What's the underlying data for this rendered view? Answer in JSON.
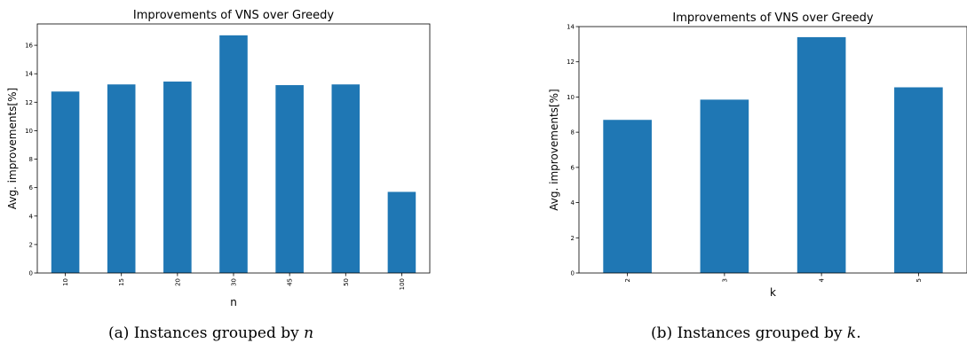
{
  "chart_data": [
    {
      "type": "bar",
      "title": "Improvements of VNS over Greedy",
      "xlabel": "n",
      "ylabel": "Avg. improvements[%]",
      "categories": [
        "10",
        "15",
        "20",
        "30",
        "45",
        "50",
        "100"
      ],
      "values": [
        12.75,
        13.25,
        13.45,
        16.7,
        13.2,
        13.25,
        5.7
      ],
      "ylim": [
        0,
        17.5
      ],
      "yticks": [
        0,
        2,
        4,
        6,
        8,
        10,
        12,
        14,
        16
      ],
      "color": "#1f77b4",
      "grid": false,
      "x_tick_rotation": "vertical"
    },
    {
      "type": "bar",
      "title": "Improvements of VNS over Greedy",
      "xlabel": "k",
      "ylabel": "Avg. improvements[%]",
      "categories": [
        "2",
        "3",
        "4",
        "5"
      ],
      "values": [
        8.7,
        9.85,
        13.4,
        10.55
      ],
      "ylim": [
        0,
        14
      ],
      "yticks": [
        0,
        2,
        4,
        6,
        8,
        10,
        12,
        14
      ],
      "color": "#1f77b4",
      "grid": false,
      "x_tick_rotation": "vertical"
    }
  ],
  "captions": [
    {
      "label": "(a) Instances grouped by",
      "var": "n",
      "suffix": ""
    },
    {
      "label": "(b) Instances grouped by",
      "var": "k",
      "suffix": "."
    }
  ]
}
